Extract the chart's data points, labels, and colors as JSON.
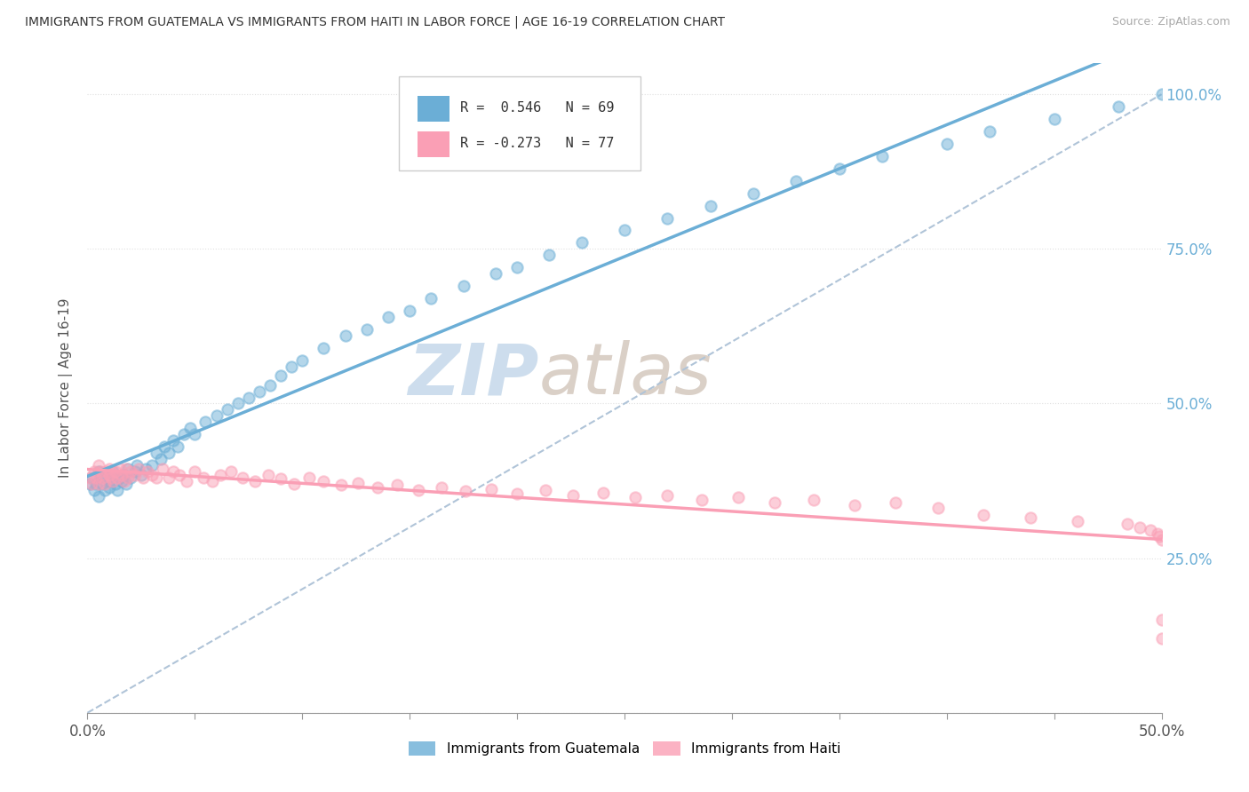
{
  "title": "IMMIGRANTS FROM GUATEMALA VS IMMIGRANTS FROM HAITI IN LABOR FORCE | AGE 16-19 CORRELATION CHART",
  "source": "Source: ZipAtlas.com",
  "ylabel": "In Labor Force | Age 16-19",
  "xmin": 0.0,
  "xmax": 0.5,
  "ymin": 0.0,
  "ymax": 1.05,
  "xticks": [
    0.0,
    0.05,
    0.1,
    0.15,
    0.2,
    0.25,
    0.3,
    0.35,
    0.4,
    0.45,
    0.5
  ],
  "xtick_labels_outer": [
    "0.0%",
    "",
    "",
    "",
    "",
    "",
    "",
    "",
    "",
    "",
    "50.0%"
  ],
  "yticks": [
    0.0,
    0.25,
    0.5,
    0.75,
    1.0
  ],
  "ytick_labels": [
    "",
    "25.0%",
    "50.0%",
    "75.0%",
    "100.0%"
  ],
  "legend_r_guatemala": "R =  0.546",
  "legend_n_guatemala": "N = 69",
  "legend_r_haiti": "R = -0.273",
  "legend_n_haiti": "N = 77",
  "color_guatemala": "#6baed6",
  "color_haiti": "#fa9fb5",
  "color_diagonal": "#b0c4d8",
  "watermark_zip": "ZIP",
  "watermark_atlas": "atlas",
  "guatemala_scatter_x": [
    0.001,
    0.002,
    0.003,
    0.004,
    0.005,
    0.005,
    0.006,
    0.007,
    0.008,
    0.009,
    0.01,
    0.01,
    0.011,
    0.012,
    0.013,
    0.014,
    0.015,
    0.016,
    0.017,
    0.018,
    0.019,
    0.02,
    0.022,
    0.023,
    0.025,
    0.027,
    0.03,
    0.032,
    0.034,
    0.036,
    0.038,
    0.04,
    0.042,
    0.045,
    0.048,
    0.05,
    0.055,
    0.06,
    0.065,
    0.07,
    0.075,
    0.08,
    0.085,
    0.09,
    0.095,
    0.1,
    0.11,
    0.12,
    0.13,
    0.14,
    0.15,
    0.16,
    0.175,
    0.19,
    0.2,
    0.215,
    0.23,
    0.25,
    0.27,
    0.29,
    0.31,
    0.33,
    0.35,
    0.37,
    0.4,
    0.42,
    0.45,
    0.48,
    0.5
  ],
  "guatemala_scatter_y": [
    0.37,
    0.38,
    0.36,
    0.37,
    0.35,
    0.39,
    0.38,
    0.37,
    0.36,
    0.38,
    0.375,
    0.365,
    0.38,
    0.39,
    0.37,
    0.36,
    0.38,
    0.375,
    0.385,
    0.37,
    0.395,
    0.38,
    0.39,
    0.4,
    0.385,
    0.395,
    0.4,
    0.42,
    0.41,
    0.43,
    0.42,
    0.44,
    0.43,
    0.45,
    0.46,
    0.45,
    0.47,
    0.48,
    0.49,
    0.5,
    0.51,
    0.52,
    0.53,
    0.545,
    0.56,
    0.57,
    0.59,
    0.61,
    0.62,
    0.64,
    0.65,
    0.67,
    0.69,
    0.71,
    0.72,
    0.74,
    0.76,
    0.78,
    0.8,
    0.82,
    0.84,
    0.86,
    0.88,
    0.9,
    0.92,
    0.94,
    0.96,
    0.98,
    1.0
  ],
  "haiti_scatter_x": [
    0.001,
    0.002,
    0.003,
    0.004,
    0.005,
    0.005,
    0.006,
    0.007,
    0.008,
    0.009,
    0.01,
    0.01,
    0.011,
    0.012,
    0.013,
    0.014,
    0.015,
    0.016,
    0.017,
    0.018,
    0.019,
    0.02,
    0.022,
    0.024,
    0.026,
    0.028,
    0.03,
    0.032,
    0.035,
    0.038,
    0.04,
    0.043,
    0.046,
    0.05,
    0.054,
    0.058,
    0.062,
    0.067,
    0.072,
    0.078,
    0.084,
    0.09,
    0.096,
    0.103,
    0.11,
    0.118,
    0.126,
    0.135,
    0.144,
    0.154,
    0.165,
    0.176,
    0.188,
    0.2,
    0.213,
    0.226,
    0.24,
    0.255,
    0.27,
    0.286,
    0.303,
    0.32,
    0.338,
    0.357,
    0.376,
    0.396,
    0.417,
    0.439,
    0.461,
    0.484,
    0.49,
    0.495,
    0.498,
    0.499,
    0.5,
    0.5,
    0.5
  ],
  "haiti_scatter_y": [
    0.38,
    0.37,
    0.39,
    0.38,
    0.37,
    0.4,
    0.39,
    0.38,
    0.37,
    0.39,
    0.385,
    0.395,
    0.38,
    0.375,
    0.39,
    0.38,
    0.395,
    0.385,
    0.375,
    0.395,
    0.38,
    0.39,
    0.385,
    0.395,
    0.38,
    0.39,
    0.385,
    0.38,
    0.395,
    0.38,
    0.39,
    0.385,
    0.375,
    0.39,
    0.38,
    0.375,
    0.385,
    0.39,
    0.38,
    0.375,
    0.385,
    0.378,
    0.37,
    0.38,
    0.375,
    0.368,
    0.372,
    0.365,
    0.368,
    0.36,
    0.365,
    0.358,
    0.362,
    0.355,
    0.36,
    0.352,
    0.356,
    0.348,
    0.352,
    0.344,
    0.348,
    0.34,
    0.344,
    0.336,
    0.34,
    0.332,
    0.32,
    0.315,
    0.31,
    0.305,
    0.3,
    0.295,
    0.29,
    0.285,
    0.28,
    0.15,
    0.12
  ]
}
